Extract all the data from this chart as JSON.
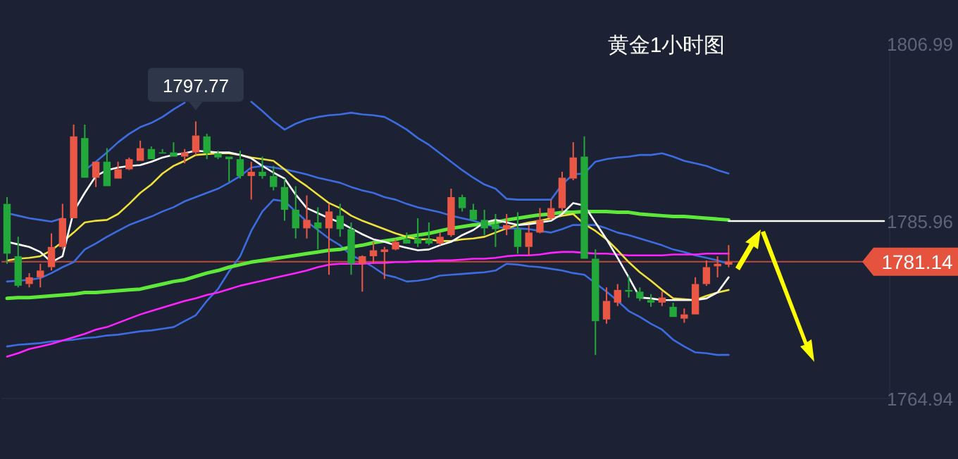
{
  "chart_data": {
    "type": "candlestick",
    "title": "黄金1小时图",
    "tick_labels": "y",
    "categories": [
      null,
      null,
      null,
      null,
      null,
      null,
      null,
      null,
      null,
      null,
      null,
      null,
      null,
      null,
      null,
      null,
      null,
      null,
      null,
      null,
      null,
      null,
      null,
      null,
      null,
      null,
      null,
      null,
      null,
      null,
      null,
      null,
      null,
      null,
      null,
      null,
      null,
      null,
      null,
      null,
      null,
      null,
      null,
      null,
      null,
      null,
      null,
      null,
      null,
      null,
      null,
      null,
      null,
      null,
      null,
      null,
      null,
      null,
      null,
      null,
      null,
      null,
      null,
      null,
      null,
      null,
      null,
      null,
      null,
      null,
      null,
      null,
      null,
      null,
      null,
      null,
      null,
      null,
      null,
      null
    ],
    "ylim": [
      1764.94,
      1806.99
    ],
    "yticks": [
      1764.94,
      1785.96,
      1806.99
    ],
    "ohlc": [
      [
        1788.0,
        1788.8,
        1780.9,
        1782.1
      ],
      [
        1781.8,
        1784.1,
        1778.1,
        1778.3
      ],
      [
        1778.5,
        1779.8,
        1778.1,
        1779.3
      ],
      [
        1779.3,
        1780.9,
        1778.1,
        1780.1
      ],
      [
        1780.5,
        1784.5,
        1780.1,
        1782.9
      ],
      [
        1782.9,
        1788.0,
        1782.6,
        1786.3
      ],
      [
        1786.3,
        1797.4,
        1786.3,
        1796.0
      ],
      [
        1795.8,
        1797.4,
        1791.1,
        1791.1
      ],
      [
        1791.1,
        1793.0,
        1790.0,
        1793.0
      ],
      [
        1793.0,
        1794.6,
        1790.1,
        1790.1
      ],
      [
        1791.0,
        1793.0,
        1791.0,
        1792.1
      ],
      [
        1792.1,
        1793.5,
        1792.0,
        1793.3
      ],
      [
        1793.1,
        1795.5,
        1793.1,
        1794.6
      ],
      [
        1794.5,
        1794.8,
        1793.3,
        1793.3
      ],
      [
        1794.1,
        1794.5,
        1794.0,
        1794.0
      ],
      [
        1794.1,
        1795.3,
        1793.6,
        1793.6
      ],
      [
        1793.6,
        1794.5,
        1792.8,
        1794.1
      ],
      [
        1794.1,
        1797.77,
        1793.8,
        1796.1
      ],
      [
        1796.0,
        1796.3,
        1793.3,
        1794.0
      ],
      [
        1794.0,
        1794.3,
        1793.3,
        1793.5
      ],
      [
        1793.6,
        1793.6,
        1790.6,
        1793.3
      ],
      [
        1793.3,
        1794.3,
        1791.0,
        1791.3
      ],
      [
        1791.3,
        1793.0,
        1788.5,
        1791.8
      ],
      [
        1791.8,
        1793.6,
        1791.0,
        1791.3
      ],
      [
        1791.3,
        1792.5,
        1789.6,
        1790.0
      ],
      [
        1790.0,
        1791.0,
        1786.0,
        1787.3
      ],
      [
        1787.3,
        1790.1,
        1783.9,
        1785.1
      ],
      [
        1785.1,
        1789.0,
        1783.9,
        1786.1
      ],
      [
        1785.8,
        1787.6,
        1782.6,
        1785.1
      ],
      [
        1785.1,
        1788.0,
        1779.6,
        1787.1
      ],
      [
        1786.6,
        1788.0,
        1784.1,
        1785.0
      ],
      [
        1785.0,
        1785.8,
        1779.6,
        1780.9
      ],
      [
        1780.9,
        1781.9,
        1777.6,
        1781.8
      ],
      [
        1781.8,
        1783.5,
        1780.9,
        1782.5
      ],
      [
        1782.3,
        1782.9,
        1779.1,
        1782.6
      ],
      [
        1782.6,
        1783.8,
        1782.5,
        1783.5
      ],
      [
        1783.8,
        1784.6,
        1783.3,
        1783.3
      ],
      [
        1783.9,
        1786.3,
        1782.9,
        1783.3
      ],
      [
        1783.8,
        1785.8,
        1783.1,
        1783.3
      ],
      [
        1783.3,
        1784.6,
        1783.1,
        1784.1
      ],
      [
        1784.3,
        1789.8,
        1784.1,
        1788.8
      ],
      [
        1788.8,
        1789.1,
        1787.1,
        1787.5
      ],
      [
        1787.3,
        1788.0,
        1786.0,
        1786.1
      ],
      [
        1786.1,
        1787.3,
        1784.3,
        1785.1
      ],
      [
        1785.6,
        1786.8,
        1782.9,
        1785.0
      ],
      [
        1785.0,
        1786.8,
        1784.3,
        1785.5
      ],
      [
        1785.0,
        1787.0,
        1782.1,
        1782.9
      ],
      [
        1782.9,
        1785.5,
        1781.9,
        1784.6
      ],
      [
        1784.6,
        1787.5,
        1784.5,
        1786.1
      ],
      [
        1786.3,
        1788.5,
        1786.1,
        1787.5
      ],
      [
        1787.5,
        1791.8,
        1787.1,
        1791.1
      ],
      [
        1791.0,
        1795.3,
        1790.8,
        1793.5
      ],
      [
        1793.6,
        1796.0,
        1781.5,
        1781.5
      ],
      [
        1781.5,
        1782.6,
        1770.1,
        1774.1
      ],
      [
        1774.3,
        1778.1,
        1773.8,
        1776.5
      ],
      [
        1776.3,
        1778.5,
        1775.9,
        1777.8
      ],
      [
        1777.8,
        1779.5,
        1776.9,
        1777.6
      ],
      [
        1777.6,
        1778.1,
        1776.5,
        1776.8
      ],
      [
        1776.6,
        1777.3,
        1775.8,
        1776.3
      ],
      [
        1776.3,
        1777.6,
        1775.9,
        1776.9
      ],
      [
        1775.8,
        1776.3,
        1774.6,
        1774.6
      ],
      [
        1774.4,
        1775.6,
        1773.9,
        1774.9
      ],
      [
        1774.9,
        1779.3,
        1774.9,
        1778.5
      ],
      [
        1778.5,
        1781.3,
        1778.3,
        1780.5
      ],
      [
        1780.6,
        1781.8,
        1779.3,
        1780.9
      ],
      [
        1780.8,
        1783.1,
        1780.5,
        1781.14
      ],
      null,
      null,
      null,
      null,
      null,
      null,
      null,
      null,
      null,
      null,
      null,
      null,
      null,
      null
    ],
    "colors": [
      "#23a83a",
      "#23a83a",
      "#ea5745",
      "#ea5745",
      "#ea5745",
      "#ea5745",
      "#ea5745",
      "#23a83a",
      "#ea5745",
      "#23a83a",
      "#ea5745",
      "#ea5745",
      "#ea5745",
      "#23a83a",
      "#23a83a",
      "#23a83a",
      "#ea5745",
      "#ea5745",
      "#23a83a",
      "#23a83a",
      "#23a83a",
      "#23a83a",
      "#ea5745",
      "#23a83a",
      "#23a83a",
      "#23a83a",
      "#23a83a",
      "#ea5745",
      "#23a83a",
      "#ea5745",
      "#23a83a",
      "#23a83a",
      "#ea5745",
      "#ea5745",
      "#ea5745",
      "#ea5745",
      "#23a83a",
      "#23a83a",
      "#23a83a",
      "#ea5745",
      "#ea5745",
      "#23a83a",
      "#23a83a",
      "#23a83a",
      "#23a83a",
      "#ea5745",
      "#23a83a",
      "#ea5745",
      "#ea5745",
      "#ea5745",
      "#ea5745",
      "#ea5745",
      "#23a83a",
      "#23a83a",
      "#ea5745",
      "#ea5745",
      "#23a83a",
      "#23a83a",
      "#23a83a",
      "#ea5745",
      "#23a83a",
      "#ea5745",
      "#ea5745",
      "#ea5745",
      "#ea5745",
      "#ea5745",
      null,
      null,
      null,
      null,
      null,
      null,
      null,
      null,
      null,
      null,
      null,
      null,
      null,
      null
    ],
    "series": [
      {
        "type": "line",
        "color": "#3d6be0",
        "values": [
          1786.9,
          1786.6,
          1786.3,
          1786.1,
          1785.9,
          1786.3,
          null,
          1792.0,
          1793.0,
          1794.1,
          1795.3,
          1796.3,
          1797.1,
          1797.6,
          1798.3,
          1799.2,
          1800.0,
          null,
          null,
          null,
          null,
          null,
          1800.1,
          1799.0,
          1797.8,
          1796.8,
          1797.5,
          1798.0,
          1798.3,
          1798.5,
          1798.6,
          1798.8,
          1798.6,
          1798.5,
          1798.3,
          1797.6,
          1796.8,
          1795.8,
          1795.0,
          1794.0,
          1793.0,
          1792.0,
          1791.1,
          1790.3,
          1789.8,
          1788.6,
          1788.5,
          1788.5,
          1788.5,
          1788.5,
          1790.3,
          1791.5,
          1791.6,
          1793.0,
          1793.3,
          1793.5,
          1793.6,
          1793.8,
          1793.8,
          1794.0,
          1793.6,
          1793.1,
          1792.8,
          1792.5,
          1792.0,
          1791.6,
          null,
          null,
          null,
          null,
          null,
          null,
          null,
          null,
          null,
          null,
          null,
          null,
          null,
          null
        ]
      },
      {
        "type": "line",
        "color": "#3d6be0",
        "values": [
          1778.8,
          1778.9,
          1779.0,
          1779.2,
          1779.8,
          1780.5,
          1781.1,
          1782.6,
          1783.3,
          1784.1,
          1784.8,
          1785.5,
          1786.0,
          1786.5,
          1787.1,
          1787.6,
          1788.3,
          1788.8,
          1789.3,
          1789.8,
          1790.5,
          1791.3,
          1792.3,
          1792.5,
          1792.3,
          1792.1,
          1791.8,
          1791.5,
          1791.1,
          1790.8,
          1790.5,
          1790.0,
          1789.6,
          1789.3,
          1788.8,
          1788.5,
          1788.0,
          1787.6,
          1787.3,
          1787.0,
          1786.6,
          1786.3,
          1786.0,
          1785.6,
          1785.3,
          1785.1,
          1785.1,
          1785.0,
          1784.8,
          1784.6,
          1785.0,
          1785.5,
          1785.5,
          1785.5,
          1785.1,
          1784.6,
          1784.3,
          1783.9,
          1783.5,
          1783.1,
          1782.6,
          1782.3,
          1781.9,
          1781.6,
          1781.3,
          1780.9,
          null,
          null,
          null,
          null,
          null,
          null,
          null,
          null,
          null,
          null,
          null,
          null,
          null,
          null
        ]
      },
      {
        "type": "line",
        "color": "#3d6be0",
        "values": [
          1771.1,
          1771.3,
          1771.4,
          1771.5,
          1771.7,
          1771.8,
          1771.9,
          1772.1,
          1772.2,
          1772.4,
          1772.5,
          1772.7,
          1772.9,
          1773.0,
          1773.2,
          1773.4,
          1774.1,
          1774.8,
          1776.5,
          1777.9,
          1780.0,
          1781.8,
          1784.8,
          1787.1,
          1788.5,
          1788.3,
          1787.1,
          1785.9,
          1784.9,
          1783.9,
          1783.1,
          1781.9,
          1781.3,
          1780.5,
          1779.6,
          1779.3,
          1778.8,
          1778.9,
          1779.1,
          1779.5,
          1779.6,
          1779.7,
          1779.8,
          1779.9,
          1780.1,
          1780.9,
          1780.8,
          1780.6,
          1780.5,
          1780.3,
          1780.1,
          1779.8,
          1779.6,
          1778.6,
          1777.6,
          1776.5,
          1775.3,
          1774.6,
          1773.8,
          1773.1,
          1771.9,
          1771.1,
          1770.4,
          1770.3,
          1770.1,
          1770.1,
          null,
          null,
          null,
          null,
          null,
          null,
          null,
          null,
          null,
          null,
          null,
          null,
          null,
          null
        ]
      },
      {
        "type": "line",
        "color": "#ff22ff",
        "values": [
          1769.9,
          1770.3,
          1770.8,
          1771.1,
          1771.4,
          1771.8,
          1772.2,
          1772.6,
          1773.1,
          1773.4,
          1773.9,
          1774.4,
          1774.9,
          1775.3,
          1775.7,
          1776.1,
          1776.5,
          1776.8,
          1777.2,
          1777.5,
          1777.9,
          1778.3,
          1778.6,
          1778.9,
          1779.2,
          1779.5,
          1779.8,
          1780.1,
          1780.5,
          1780.8,
          1780.9,
          1780.9,
          1780.9,
          1781.0,
          1781.0,
          1781.1,
          1781.1,
          1781.2,
          1781.2,
          1781.3,
          1781.3,
          1781.4,
          1781.5,
          1781.5,
          1781.6,
          1781.8,
          1781.9,
          1781.9,
          1782.0,
          1782.2,
          1782.3,
          1782.3,
          1782.2,
          1782.1,
          1782.1,
          1782.0,
          1781.9,
          1781.9,
          1781.9,
          1781.9,
          1782.0,
          1782.0,
          1782.0,
          1782.1,
          1782.1,
          1782.1,
          null,
          null,
          null,
          null,
          null,
          null,
          null,
          null,
          null,
          null,
          null,
          null,
          null,
          null
        ]
      },
      {
        "type": "line",
        "color": "#5ee83a",
        "values": [
          1776.8,
          1776.9,
          1776.9,
          1777.0,
          1777.1,
          1777.2,
          1777.3,
          1777.5,
          1777.5,
          1777.6,
          1777.7,
          1777.8,
          1777.9,
          1778.2,
          1778.5,
          1778.8,
          1779.0,
          1779.4,
          1779.8,
          1780.1,
          1780.5,
          1780.8,
          1781.1,
          1781.3,
          1781.5,
          1781.7,
          1781.9,
          1782.1,
          1782.3,
          1782.5,
          1782.6,
          1782.9,
          1783.1,
          1783.4,
          1783.6,
          1783.8,
          1784.1,
          1784.3,
          1784.5,
          1784.8,
          1785.1,
          1785.3,
          1785.5,
          1785.6,
          1785.8,
          1786.1,
          1786.3,
          1786.5,
          1786.7,
          1786.8,
          1787.0,
          1787.0,
          1787.1,
          1787.1,
          1787.1,
          1787.0,
          1787.0,
          1786.8,
          1786.7,
          1786.6,
          1786.5,
          1786.5,
          1786.4,
          1786.3,
          1786.2,
          1786.1,
          null,
          null,
          null,
          null,
          null,
          null,
          null,
          null,
          null,
          null,
          null,
          null,
          null,
          null
        ]
      },
      {
        "type": "line",
        "color": "#f0e03a",
        "values": [
          1781.3,
          1781.5,
          1781.6,
          1781.8,
          1782.5,
          1783.5,
          1784.6,
          1785.8,
          1786.0,
          1786.1,
          1786.8,
          1788.0,
          1789.3,
          1790.3,
          1791.6,
          1792.5,
          1793.1,
          1793.8,
          1793.9,
          1794.0,
          1794.0,
          1793.8,
          1793.5,
          1793.3,
          1793.1,
          1792.1,
          1791.0,
          1790.1,
          1789.1,
          1788.1,
          1787.5,
          1786.6,
          1786.0,
          1785.5,
          1785.0,
          1784.5,
          1784.1,
          1783.8,
          1783.8,
          1783.6,
          1783.6,
          1783.8,
          1783.9,
          1784.1,
          1784.6,
          1785.1,
          1785.5,
          1785.8,
          1786.0,
          1786.3,
          1786.6,
          1786.8,
          1785.6,
          1784.8,
          1783.8,
          1782.5,
          1781.1,
          1779.9,
          1778.9,
          1777.8,
          1776.8,
          1776.7,
          1776.6,
          1777.1,
          1777.5,
          1777.8,
          null,
          null,
          null,
          null,
          null,
          null,
          null,
          null,
          null,
          null,
          null,
          null,
          null,
          null
        ]
      },
      {
        "type": "line",
        "color": "#ffffff",
        "values": [
          1783.5,
          1783.2,
          1782.9,
          1782.3,
          1781.1,
          1781.8,
          1787.1,
          1789.3,
          1791.3,
          1792.0,
          1792.3,
          1792.5,
          1792.6,
          1793.0,
          1793.5,
          1793.8,
          1794.0,
          1794.3,
          1794.2,
          1794.1,
          1794.1,
          1793.8,
          1793.4,
          1792.5,
          1791.7,
          1791.0,
          1789.1,
          1787.5,
          1786.9,
          1786.3,
          1785.8,
          1785.1,
          1784.4,
          1783.8,
          1783.5,
          1783.1,
          1782.8,
          1782.5,
          1782.6,
          1783.1,
          1783.5,
          1784.3,
          1784.9,
          1785.8,
          1786.1,
          1785.8,
          1785.5,
          1785.6,
          1785.8,
          1786.0,
          1786.8,
          1788.1,
          1787.8,
          1785.8,
          1783.8,
          1781.6,
          1779.3,
          1776.9,
          1776.8,
          1776.6,
          1776.6,
          1776.6,
          1776.6,
          1776.8,
          1777.5,
          1779.3,
          null,
          null,
          null,
          null,
          null,
          null,
          null,
          null,
          null,
          null,
          null,
          null,
          null,
          null
        ]
      },
      {
        "type": "line",
        "color": "#ffffff",
        "values": [
          null,
          null,
          null,
          null,
          null,
          null,
          null,
          null,
          null,
          null,
          null,
          null,
          null,
          null,
          null,
          null,
          null,
          null,
          null,
          null,
          null,
          null,
          null,
          null,
          null,
          null,
          null,
          null,
          null,
          null,
          null,
          null,
          null,
          null,
          null,
          null,
          null,
          null,
          null,
          null,
          null,
          null,
          null,
          null,
          null,
          null,
          null,
          null,
          null,
          null,
          null,
          null,
          null,
          null,
          null,
          null,
          null,
          null,
          null,
          null,
          null,
          null,
          null,
          null,
          null,
          1785.96,
          1785.96,
          1785.96,
          1785.96,
          1785.96,
          1785.96,
          1785.96,
          1785.96,
          1785.96,
          1785.96,
          1785.96,
          1785.96,
          1785.96,
          1785.96,
          1785.96
        ]
      }
    ],
    "ref_lines": [
      {
        "axis": "y",
        "value": 1781.14,
        "label": "1781.14",
        "color": "#e5533f"
      }
    ],
    "annotations": [
      "1797.77"
    ]
  }
}
